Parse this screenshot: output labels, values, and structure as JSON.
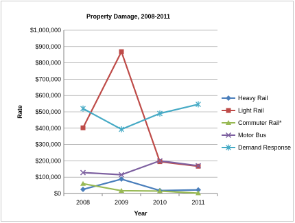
{
  "chart_data": {
    "type": "line",
    "title": "Property Damage, 2008-2011",
    "xlabel": "Year",
    "ylabel": "Rate",
    "categories": [
      "2008",
      "2009",
      "2010",
      "2011"
    ],
    "ylim": [
      0,
      1000000
    ],
    "yticks": [
      "$0",
      "$100,000",
      "$200,000",
      "$300,000",
      "$400,000",
      "$500,000",
      "$600,000",
      "$700,000",
      "$800,000",
      "$900,000",
      "$1,000,000"
    ],
    "grid": true,
    "legend_position": "right",
    "series": [
      {
        "name": "Heavy Rail",
        "color": "#4a7ebb",
        "marker": "diamond",
        "values": [
          25000,
          88000,
          18000,
          22000
        ]
      },
      {
        "name": "Light Rail",
        "color": "#be4b48",
        "marker": "square",
        "values": [
          402000,
          868000,
          195000,
          167000
        ]
      },
      {
        "name": "Commuter Rail*",
        "color": "#98b954",
        "marker": "triangle",
        "values": [
          60000,
          17000,
          15000,
          2000
        ]
      },
      {
        "name": "Motor Bus",
        "color": "#7d60a0",
        "marker": "x",
        "values": [
          128000,
          115000,
          200000,
          170000
        ]
      },
      {
        "name": "Demand Response",
        "color": "#46aac5",
        "marker": "star",
        "values": [
          520000,
          393000,
          490000,
          546000
        ]
      }
    ]
  }
}
